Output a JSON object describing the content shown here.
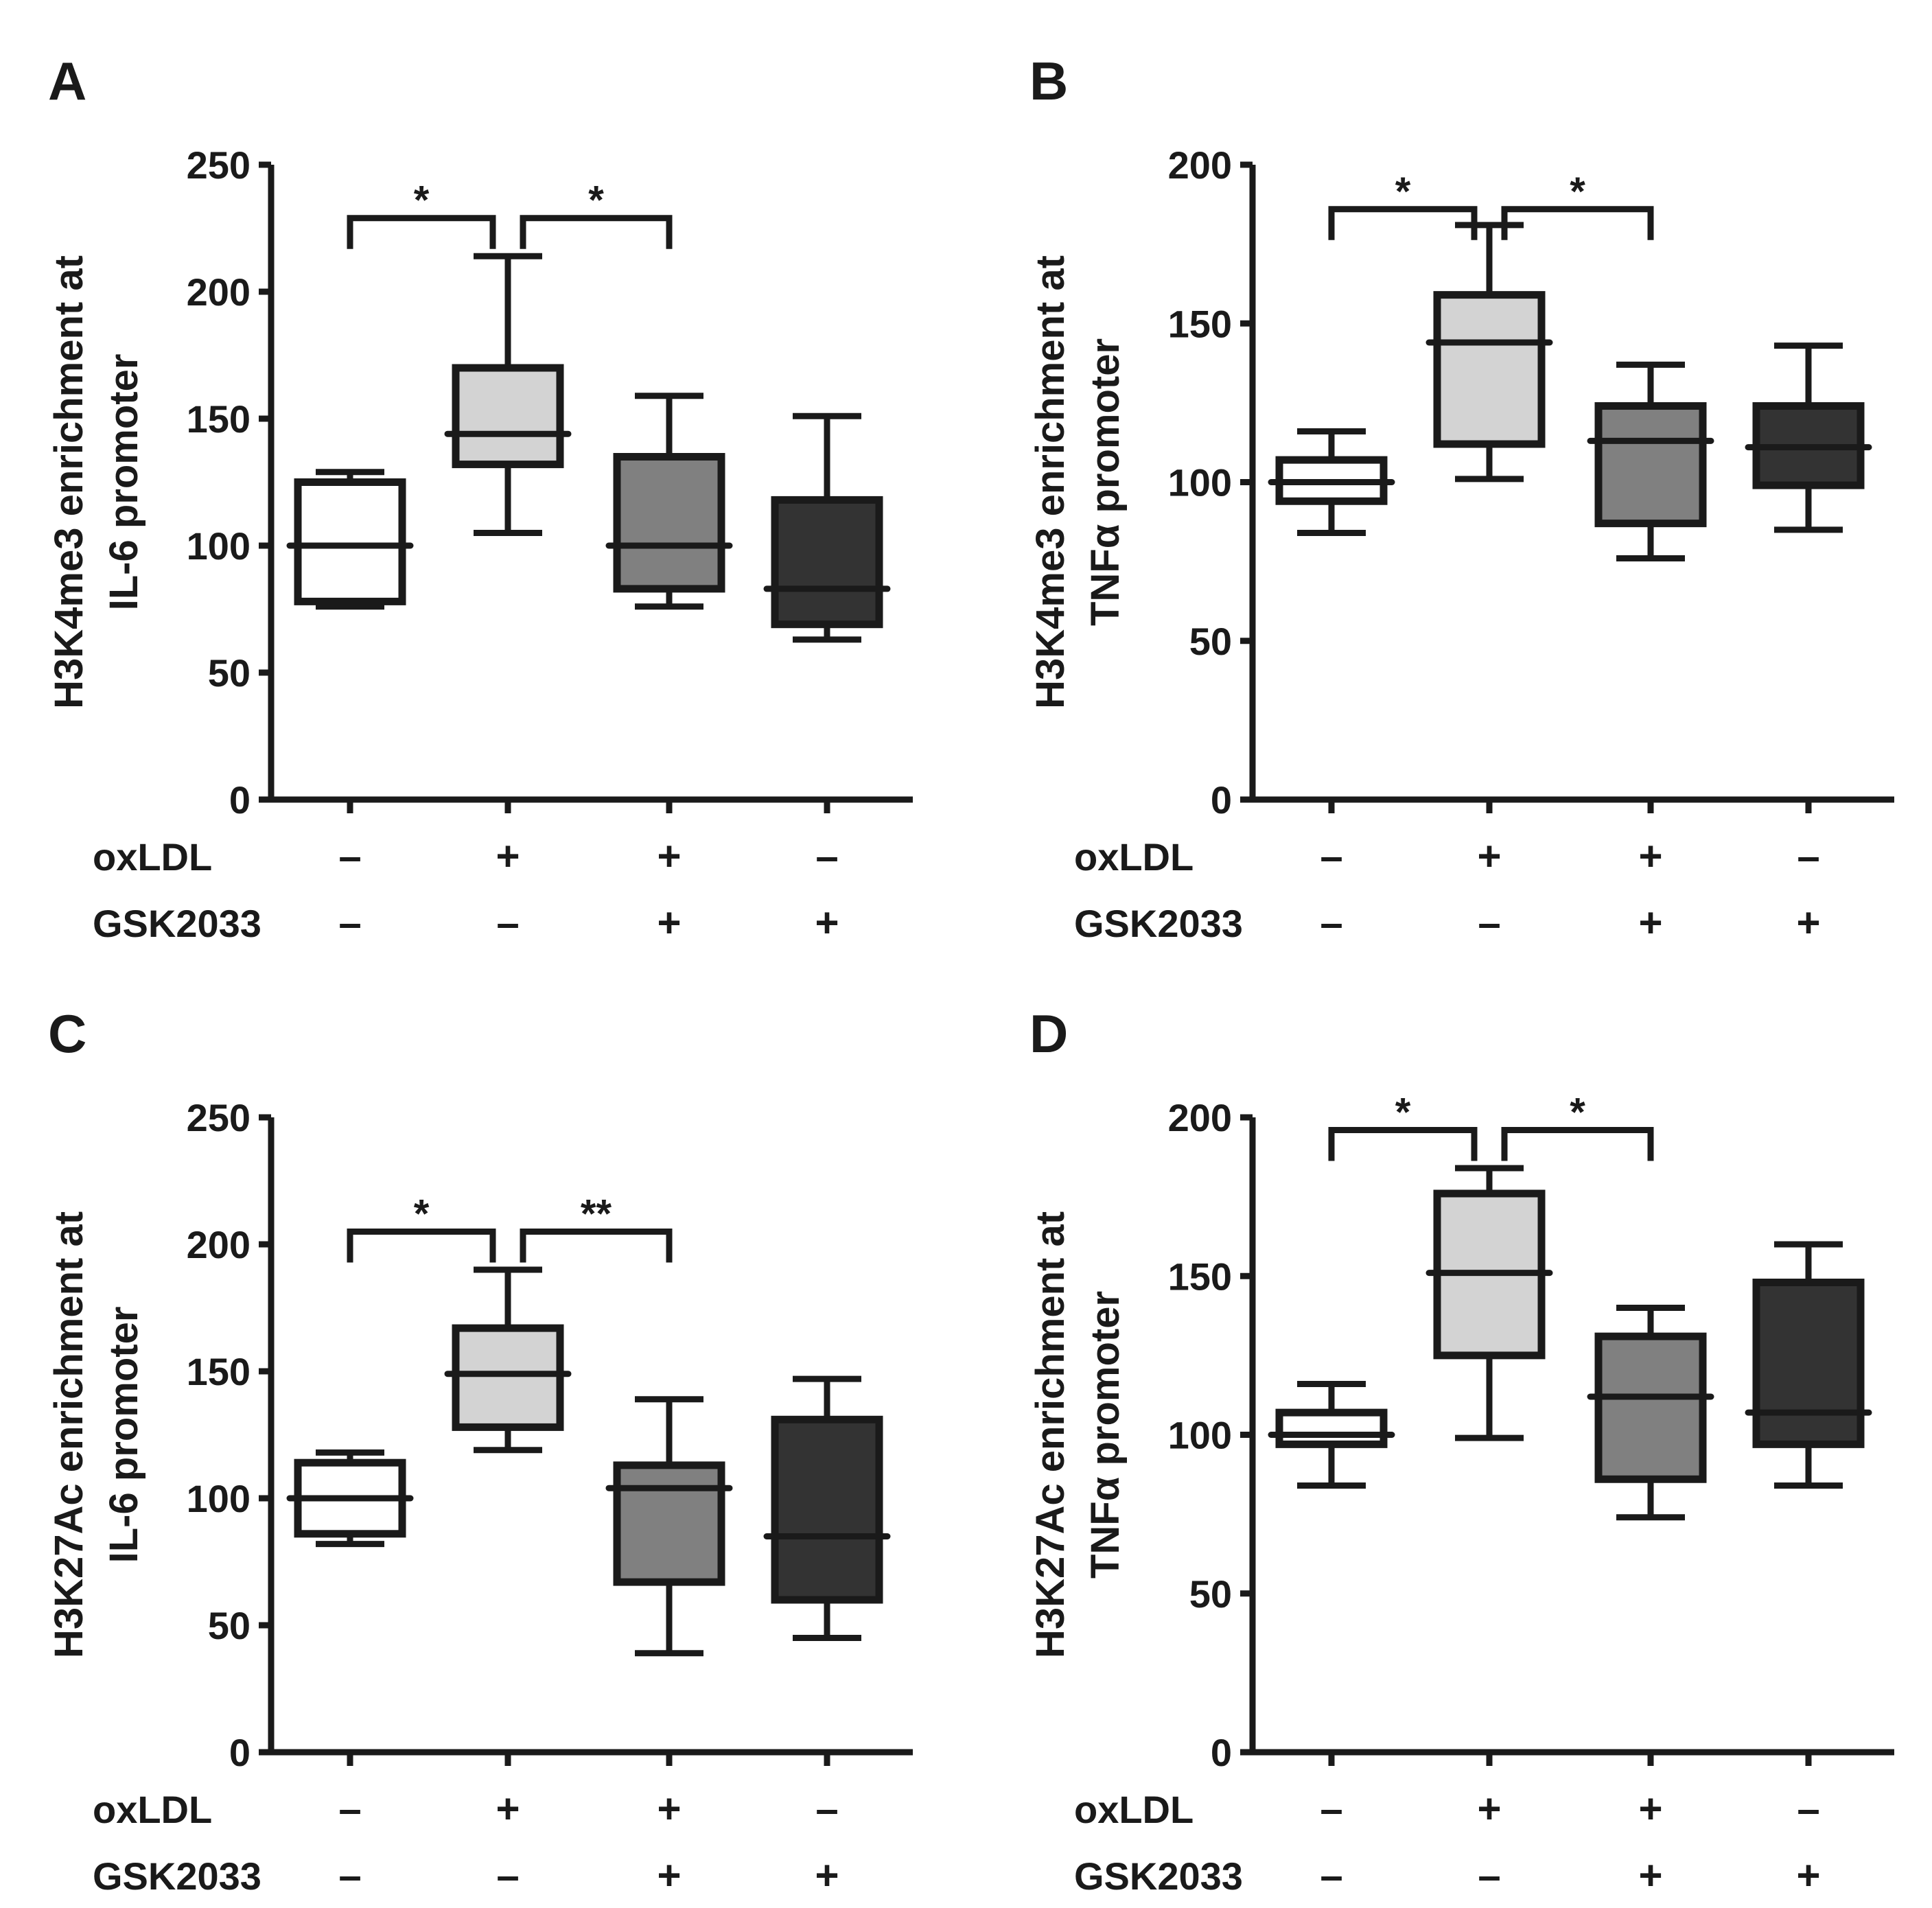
{
  "chart_data": [
    {
      "type": "box",
      "panel_label": "A",
      "ylabel_lines": [
        "H3K4me3 enrichment at",
        "IL-6 promoter"
      ],
      "ylim": [
        0,
        250
      ],
      "yticks": [
        "0",
        "50",
        "100",
        "150",
        "200",
        "250"
      ],
      "yticks_values": [
        0,
        50,
        100,
        150,
        200,
        250
      ],
      "factor_rows": [
        {
          "label": "oxLDL",
          "values": [
            "–",
            "+",
            "+",
            "–"
          ]
        },
        {
          "label": "GSK2033",
          "values": [
            "–",
            "–",
            "+",
            "+"
          ]
        }
      ],
      "boxes": [
        {
          "min": 76,
          "q1": 78,
          "median": 100,
          "q3": 125,
          "max": 129,
          "fill": "#ffffff"
        },
        {
          "min": 105,
          "q1": 132,
          "median": 144,
          "q3": 170,
          "max": 214,
          "fill": "#d3d3d3"
        },
        {
          "min": 76,
          "q1": 83,
          "median": 100,
          "q3": 135,
          "max": 159,
          "fill": "#808080"
        },
        {
          "min": 63,
          "q1": 69,
          "median": 83,
          "q3": 118,
          "max": 151,
          "fill": "#333333"
        }
      ],
      "significance": [
        {
          "from": 0,
          "to": 1,
          "y": 229,
          "label": "*"
        },
        {
          "from": 1,
          "to": 2,
          "y": 229,
          "label": "*"
        }
      ]
    },
    {
      "type": "box",
      "panel_label": "B",
      "ylabel_lines": [
        "H3K4me3 enrichment at",
        "TNFα promoter"
      ],
      "ylim": [
        0,
        200
      ],
      "yticks": [
        "0",
        "50",
        "100",
        "150",
        "200"
      ],
      "yticks_values": [
        0,
        50,
        100,
        150,
        200
      ],
      "factor_rows": [
        {
          "label": "oxLDL",
          "values": [
            "–",
            "+",
            "+",
            "–"
          ]
        },
        {
          "label": "GSK2033",
          "values": [
            "–",
            "–",
            "+",
            "+"
          ]
        }
      ],
      "boxes": [
        {
          "min": 84,
          "q1": 94,
          "median": 100,
          "q3": 107,
          "max": 116,
          "fill": "#ffffff"
        },
        {
          "min": 101,
          "q1": 112,
          "median": 144,
          "q3": 159,
          "max": 181,
          "fill": "#d3d3d3"
        },
        {
          "min": 76,
          "q1": 87,
          "median": 113,
          "q3": 124,
          "max": 137,
          "fill": "#808080"
        },
        {
          "min": 85,
          "q1": 99,
          "median": 111,
          "q3": 124,
          "max": 143,
          "fill": "#333333"
        }
      ],
      "significance": [
        {
          "from": 0,
          "to": 1,
          "y": 186,
          "label": "*"
        },
        {
          "from": 1,
          "to": 2,
          "y": 186,
          "label": "*"
        }
      ]
    },
    {
      "type": "box",
      "panel_label": "C",
      "ylabel_lines": [
        "H3K27Ac enrichment at",
        "IL-6 promoter"
      ],
      "ylim": [
        0,
        250
      ],
      "yticks": [
        "0",
        "50",
        "100",
        "150",
        "200",
        "250"
      ],
      "yticks_values": [
        0,
        50,
        100,
        150,
        200,
        250
      ],
      "factor_rows": [
        {
          "label": "oxLDL",
          "values": [
            "–",
            "+",
            "+",
            "–"
          ]
        },
        {
          "label": "GSK2033",
          "values": [
            "–",
            "–",
            "+",
            "+"
          ]
        }
      ],
      "boxes": [
        {
          "min": 82,
          "q1": 86,
          "median": 100,
          "q3": 114,
          "max": 118,
          "fill": "#ffffff"
        },
        {
          "min": 119,
          "q1": 128,
          "median": 149,
          "q3": 167,
          "max": 190,
          "fill": "#d3d3d3"
        },
        {
          "min": 39,
          "q1": 67,
          "median": 104,
          "q3": 113,
          "max": 139,
          "fill": "#808080"
        },
        {
          "min": 45,
          "q1": 60,
          "median": 85,
          "q3": 131,
          "max": 147,
          "fill": "#333333"
        }
      ],
      "significance": [
        {
          "from": 0,
          "to": 1,
          "y": 205,
          "label": "*"
        },
        {
          "from": 1,
          "to": 2,
          "y": 205,
          "label": "**"
        }
      ]
    },
    {
      "type": "box",
      "panel_label": "D",
      "ylabel_lines": [
        "H3K27Ac enrichment at",
        "TNFα promoter"
      ],
      "ylim": [
        0,
        200
      ],
      "yticks": [
        "0",
        "50",
        "100",
        "150",
        "200"
      ],
      "yticks_values": [
        0,
        50,
        100,
        150,
        200
      ],
      "factor_rows": [
        {
          "label": "oxLDL",
          "values": [
            "–",
            "+",
            "+",
            "–"
          ]
        },
        {
          "label": "GSK2033",
          "values": [
            "–",
            "–",
            "+",
            "+"
          ]
        }
      ],
      "boxes": [
        {
          "min": 84,
          "q1": 97,
          "median": 100,
          "q3": 107,
          "max": 116,
          "fill": "#ffffff"
        },
        {
          "min": 99,
          "q1": 125,
          "median": 151,
          "q3": 176,
          "max": 184,
          "fill": "#d3d3d3"
        },
        {
          "min": 74,
          "q1": 86,
          "median": 112,
          "q3": 131,
          "max": 140,
          "fill": "#808080"
        },
        {
          "min": 84,
          "q1": 97,
          "median": 107,
          "q3": 148,
          "max": 160,
          "fill": "#333333"
        }
      ],
      "significance": [
        {
          "from": 0,
          "to": 1,
          "y": 196,
          "label": "*"
        },
        {
          "from": 1,
          "to": 2,
          "y": 196,
          "label": "*"
        }
      ]
    }
  ]
}
